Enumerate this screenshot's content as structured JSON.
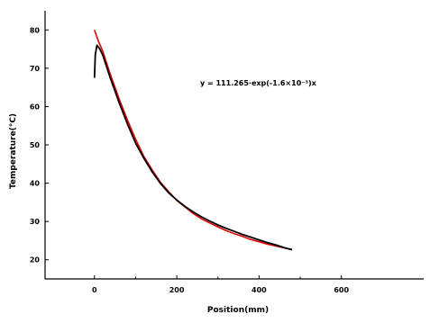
{
  "chart_data": {
    "type": "line",
    "title": "",
    "xlabel": "Position(mm)",
    "ylabel": "Temperature(°C)",
    "xlim": [
      -120,
      800
    ],
    "ylim": [
      15,
      85
    ],
    "xticks": [
      0,
      200,
      400,
      600
    ],
    "yticks": [
      20,
      30,
      40,
      50,
      60,
      70,
      80
    ],
    "grid": false,
    "annotation": "y = 111.265·exp(-1.6×10⁻³)x",
    "series": [
      {
        "color": "#e00000",
        "x": [
          0,
          10,
          20,
          40,
          60,
          80,
          100,
          120,
          140,
          160,
          180,
          200,
          220,
          240,
          260,
          280,
          300,
          320,
          340,
          360,
          380,
          400,
          420,
          440,
          460,
          480
        ],
        "y": [
          80,
          77,
          74.5,
          68,
          62,
          56.5,
          51.5,
          47,
          43.5,
          40.3,
          37.8,
          35.5,
          33.8,
          32.1,
          30.7,
          29.6,
          28.6,
          27.6,
          26.8,
          26.1,
          25.3,
          24.7,
          24.1,
          23.6,
          23.1,
          22.7
        ]
      },
      {
        "color": "#000000",
        "x": [
          0,
          2,
          6,
          12,
          20,
          40,
          60,
          80,
          100,
          120,
          140,
          160,
          180,
          200,
          220,
          240,
          260,
          280,
          300,
          320,
          340,
          360,
          380,
          400,
          420,
          440,
          460,
          480
        ],
        "y": [
          67.5,
          73.5,
          76,
          75.2,
          73.5,
          67,
          61,
          55.5,
          50.5,
          46.5,
          43,
          40,
          37.5,
          35.6,
          33.9,
          32.5,
          31.2,
          30.1,
          29.1,
          28.2,
          27.4,
          26.6,
          25.9,
          25.2,
          24.5,
          23.9,
          23.2,
          22.6
        ]
      }
    ]
  }
}
